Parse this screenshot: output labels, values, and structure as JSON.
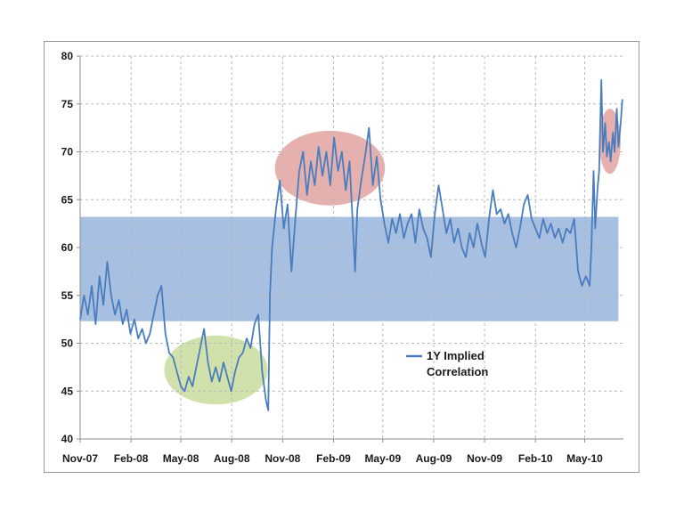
{
  "chart_data": {
    "type": "line",
    "title": "",
    "xlabel": "",
    "ylabel": "",
    "ylim": [
      40,
      80
    ],
    "yticks": [
      40,
      45,
      50,
      55,
      60,
      65,
      70,
      75,
      80
    ],
    "xticks": [
      "Nov-07",
      "Feb-08",
      "May-08",
      "Aug-08",
      "Nov-08",
      "Feb-09",
      "May-09",
      "Aug-09",
      "Nov-09",
      "Feb-10",
      "May-10"
    ],
    "xlim": [
      "2007-11-01",
      "2010-07-10"
    ],
    "grid": true,
    "legend": {
      "position": "center-right",
      "lines": [
        "1Y Implied",
        "Correlation"
      ]
    },
    "series": [
      {
        "name": "1Y Implied Correlation",
        "color": "#4a7dbd",
        "points": [
          [
            "2007-11-01",
            52.5
          ],
          [
            "2007-11-08",
            55.0
          ],
          [
            "2007-11-15",
            53.0
          ],
          [
            "2007-11-22",
            56.0
          ],
          [
            "2007-11-29",
            52.0
          ],
          [
            "2007-12-06",
            57.0
          ],
          [
            "2007-12-13",
            54.0
          ],
          [
            "2007-12-20",
            58.5
          ],
          [
            "2007-12-27",
            55.0
          ],
          [
            "2008-01-03",
            53.0
          ],
          [
            "2008-01-10",
            54.5
          ],
          [
            "2008-01-17",
            52.0
          ],
          [
            "2008-01-24",
            53.5
          ],
          [
            "2008-01-31",
            51.0
          ],
          [
            "2008-02-07",
            52.5
          ],
          [
            "2008-02-14",
            50.5
          ],
          [
            "2008-02-21",
            51.5
          ],
          [
            "2008-02-28",
            50.0
          ],
          [
            "2008-03-06",
            51.0
          ],
          [
            "2008-03-13",
            53.0
          ],
          [
            "2008-03-20",
            55.0
          ],
          [
            "2008-03-27",
            56.0
          ],
          [
            "2008-04-03",
            51.0
          ],
          [
            "2008-04-10",
            49.0
          ],
          [
            "2008-04-17",
            48.5
          ],
          [
            "2008-04-24",
            47.0
          ],
          [
            "2008-05-01",
            45.5
          ],
          [
            "2008-05-08",
            45.0
          ],
          [
            "2008-05-15",
            46.5
          ],
          [
            "2008-05-22",
            45.5
          ],
          [
            "2008-05-29",
            47.5
          ],
          [
            "2008-06-05",
            49.5
          ],
          [
            "2008-06-12",
            51.5
          ],
          [
            "2008-06-19",
            48.0
          ],
          [
            "2008-06-26",
            46.0
          ],
          [
            "2008-07-03",
            47.5
          ],
          [
            "2008-07-10",
            46.0
          ],
          [
            "2008-07-17",
            48.0
          ],
          [
            "2008-07-24",
            46.5
          ],
          [
            "2008-07-31",
            45.0
          ],
          [
            "2008-08-07",
            47.0
          ],
          [
            "2008-08-14",
            48.5
          ],
          [
            "2008-08-21",
            49.0
          ],
          [
            "2008-08-28",
            50.5
          ],
          [
            "2008-09-04",
            49.5
          ],
          [
            "2008-09-11",
            52.0
          ],
          [
            "2008-09-18",
            53.0
          ],
          [
            "2008-09-25",
            47.0
          ],
          [
            "2008-10-02",
            44.0
          ],
          [
            "2008-10-06",
            43.0
          ],
          [
            "2008-10-09",
            55.0
          ],
          [
            "2008-10-13",
            60.0
          ],
          [
            "2008-10-20",
            64.0
          ],
          [
            "2008-10-27",
            67.0
          ],
          [
            "2008-11-03",
            62.0
          ],
          [
            "2008-11-10",
            64.5
          ],
          [
            "2008-11-17",
            57.5
          ],
          [
            "2008-11-24",
            63.0
          ],
          [
            "2008-12-01",
            68.0
          ],
          [
            "2008-12-08",
            70.0
          ],
          [
            "2008-12-15",
            65.5
          ],
          [
            "2008-12-22",
            69.0
          ],
          [
            "2008-12-29",
            66.5
          ],
          [
            "2009-01-05",
            70.5
          ],
          [
            "2009-01-12",
            67.5
          ],
          [
            "2009-01-19",
            70.0
          ],
          [
            "2009-01-26",
            66.5
          ],
          [
            "2009-02-02",
            71.5
          ],
          [
            "2009-02-09",
            68.0
          ],
          [
            "2009-02-16",
            70.0
          ],
          [
            "2009-02-23",
            66.0
          ],
          [
            "2009-03-02",
            69.0
          ],
          [
            "2009-03-09",
            61.0
          ],
          [
            "2009-03-12",
            57.5
          ],
          [
            "2009-03-16",
            64.0
          ],
          [
            "2009-03-23",
            67.0
          ],
          [
            "2009-03-30",
            69.5
          ],
          [
            "2009-04-06",
            72.5
          ],
          [
            "2009-04-13",
            66.5
          ],
          [
            "2009-04-20",
            69.5
          ],
          [
            "2009-04-27",
            65.0
          ],
          [
            "2009-05-04",
            62.5
          ],
          [
            "2009-05-11",
            60.5
          ],
          [
            "2009-05-18",
            63.0
          ],
          [
            "2009-05-25",
            61.5
          ],
          [
            "2009-06-01",
            63.5
          ],
          [
            "2009-06-08",
            61.0
          ],
          [
            "2009-06-15",
            62.5
          ],
          [
            "2009-06-22",
            63.5
          ],
          [
            "2009-06-29",
            60.5
          ],
          [
            "2009-07-06",
            64.0
          ],
          [
            "2009-07-13",
            62.0
          ],
          [
            "2009-07-20",
            61.0
          ],
          [
            "2009-07-27",
            59.0
          ],
          [
            "2009-08-03",
            63.5
          ],
          [
            "2009-08-10",
            66.5
          ],
          [
            "2009-08-17",
            64.0
          ],
          [
            "2009-08-24",
            61.5
          ],
          [
            "2009-08-31",
            63.0
          ],
          [
            "2009-09-07",
            60.5
          ],
          [
            "2009-09-14",
            62.0
          ],
          [
            "2009-09-21",
            60.0
          ],
          [
            "2009-09-28",
            59.0
          ],
          [
            "2009-10-05",
            61.5
          ],
          [
            "2009-10-12",
            60.0
          ],
          [
            "2009-10-19",
            62.5
          ],
          [
            "2009-10-26",
            60.5
          ],
          [
            "2009-11-02",
            59.0
          ],
          [
            "2009-11-09",
            63.0
          ],
          [
            "2009-11-16",
            66.0
          ],
          [
            "2009-11-23",
            63.5
          ],
          [
            "2009-11-30",
            64.0
          ],
          [
            "2009-12-07",
            62.5
          ],
          [
            "2009-12-14",
            63.5
          ],
          [
            "2009-12-21",
            61.5
          ],
          [
            "2009-12-28",
            60.0
          ],
          [
            "2010-01-04",
            62.0
          ],
          [
            "2010-01-11",
            64.5
          ],
          [
            "2010-01-18",
            65.5
          ],
          [
            "2010-01-25",
            63.0
          ],
          [
            "2010-02-01",
            62.0
          ],
          [
            "2010-02-08",
            61.0
          ],
          [
            "2010-02-15",
            63.0
          ],
          [
            "2010-02-22",
            61.5
          ],
          [
            "2010-03-01",
            62.5
          ],
          [
            "2010-03-08",
            61.0
          ],
          [
            "2010-03-15",
            62.0
          ],
          [
            "2010-03-22",
            60.5
          ],
          [
            "2010-03-29",
            62.0
          ],
          [
            "2010-04-05",
            61.5
          ],
          [
            "2010-04-12",
            63.0
          ],
          [
            "2010-04-19",
            57.5
          ],
          [
            "2010-04-26",
            56.0
          ],
          [
            "2010-05-03",
            57.0
          ],
          [
            "2010-05-10",
            56.0
          ],
          [
            "2010-05-13",
            60.0
          ],
          [
            "2010-05-17",
            68.0
          ],
          [
            "2010-05-20",
            62.0
          ],
          [
            "2010-05-24",
            66.0
          ],
          [
            "2010-05-27",
            68.0
          ],
          [
            "2010-05-31",
            77.5
          ],
          [
            "2010-06-03",
            70.0
          ],
          [
            "2010-06-07",
            73.0
          ],
          [
            "2010-06-10",
            69.5
          ],
          [
            "2010-06-14",
            71.0
          ],
          [
            "2010-06-17",
            69.0
          ],
          [
            "2010-06-21",
            72.0
          ],
          [
            "2010-06-24",
            70.0
          ],
          [
            "2010-06-28",
            74.5
          ],
          [
            "2010-07-01",
            70.5
          ],
          [
            "2010-07-05",
            73.0
          ],
          [
            "2010-07-08",
            75.5
          ]
        ]
      }
    ],
    "highlights": [
      {
        "shape": "band",
        "y_range": [
          52.3,
          63.2
        ],
        "x_range": [
          "2007-11-01",
          "2010-07-01"
        ],
        "color": "#9db8dd"
      },
      {
        "shape": "ellipse",
        "x_range": [
          "2008-04-01",
          "2008-10-05"
        ],
        "y_range": [
          43.6,
          50.8
        ],
        "color": "#c9dc9e"
      },
      {
        "shape": "ellipse",
        "x_range": [
          "2008-10-18",
          "2009-05-05"
        ],
        "y_range": [
          64.4,
          72.2
        ],
        "color": "#e0a2a0"
      },
      {
        "shape": "ellipse",
        "x_range": [
          "2010-05-27",
          "2010-07-05"
        ],
        "y_range": [
          67.7,
          74.5
        ],
        "color": "#e0a2a0"
      }
    ]
  }
}
